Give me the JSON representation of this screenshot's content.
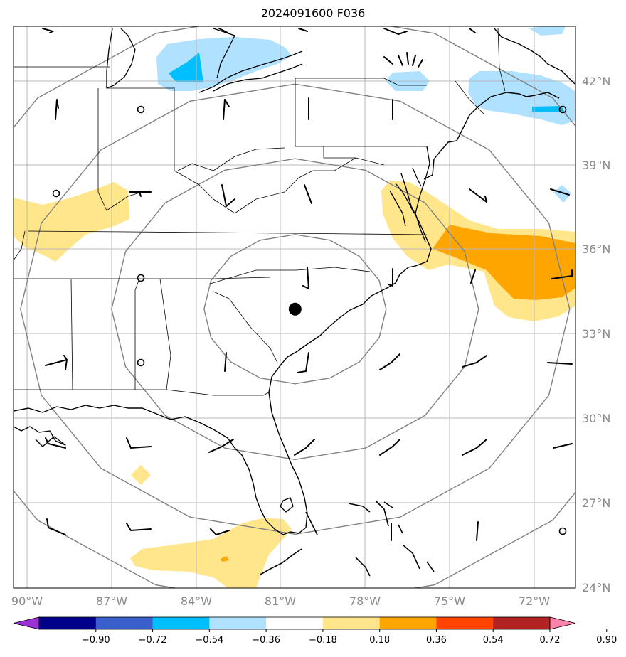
{
  "title": "2024091600 F036",
  "longitude_labels": [
    "90°W",
    "87°W",
    "84°W",
    "81°W",
    "78°W",
    "75°W",
    "72°W"
  ],
  "latitude_labels": [
    "42°N",
    "39°N",
    "36°N",
    "33°N",
    "30°N",
    "27°N",
    "24°N"
  ],
  "colorbar": {
    "labels": [
      "−0.90",
      "−0.72",
      "−0.54",
      "−0.36",
      "−0.18",
      "0.18",
      "0.36",
      "0.54",
      "0.72",
      "0.90"
    ],
    "colors": [
      "#9b30d9",
      "#00008b",
      "#3a5fcd",
      "#00bfff",
      "#b0e2ff",
      "#ffffff",
      "#ffe68a",
      "#ffa500",
      "#ff4500",
      "#b22222",
      "#ff82ab"
    ]
  },
  "fill_colors": {
    "light_blue": "#b0e2ff",
    "blue": "#00bfff",
    "yellow": "#ffe68a",
    "orange": "#ffa500"
  },
  "storm_center": {
    "lat": 33.9,
    "lon": -80.5
  }
}
